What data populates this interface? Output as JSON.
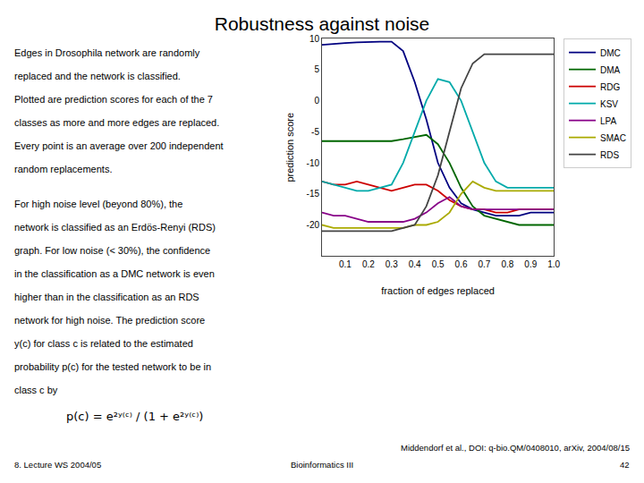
{
  "chart_data": {
    "type": "line",
    "title": "Robustness against noise",
    "xlabel": "fraction of edges replaced",
    "ylabel": "prediction score",
    "x": [
      0,
      0.05,
      0.1,
      0.15,
      0.2,
      0.25,
      0.3,
      0.35,
      0.4,
      0.45,
      0.5,
      0.55,
      0.6,
      0.65,
      0.7,
      0.75,
      0.8,
      0.85,
      0.9,
      0.95,
      1.0
    ],
    "series": [
      {
        "name": "DMC",
        "color": "#000080",
        "values": [
          9,
          9.2,
          9.3,
          9.4,
          9.5,
          9.5,
          9.5,
          8.0,
          3.0,
          -3.0,
          -10.0,
          -14.0,
          -16.5,
          -17.5,
          -18.0,
          -18.5,
          -18.5,
          -18.5,
          -18.0,
          -18.0,
          -18.0
        ]
      },
      {
        "name": "DMA",
        "color": "#006600",
        "values": [
          -6.5,
          -6.5,
          -6.5,
          -6.5,
          -6.5,
          -6.5,
          -6.5,
          -6.2,
          -5.8,
          -5.5,
          -7.0,
          -10.0,
          -14.0,
          -17.0,
          -18.5,
          -19.0,
          -19.5,
          -20.0,
          -20.0,
          -20.0,
          -20.0
        ]
      },
      {
        "name": "RDG",
        "color": "#cc0000",
        "values": [
          -13.0,
          -13.5,
          -13.5,
          -13.0,
          -13.5,
          -14.0,
          -14.5,
          -14.0,
          -13.5,
          -13.5,
          -14.5,
          -16.0,
          -17.0,
          -17.5,
          -17.5,
          -18.0,
          -18.0,
          -17.5,
          -17.5,
          -17.5,
          -17.5
        ]
      },
      {
        "name": "KSV",
        "color": "#00aaaa",
        "values": [
          -13.0,
          -13.5,
          -14.0,
          -14.5,
          -14.5,
          -14.0,
          -13.5,
          -10.0,
          -5.0,
          0.0,
          3.5,
          3.0,
          0.0,
          -5.0,
          -10.0,
          -13.0,
          -14.0,
          -14.0,
          -14.0,
          -14.0,
          -14.0
        ]
      },
      {
        "name": "LPA",
        "color": "#880088",
        "values": [
          -18.0,
          -18.5,
          -18.5,
          -19.0,
          -19.5,
          -19.5,
          -19.5,
          -19.5,
          -19.0,
          -18.0,
          -16.5,
          -15.5,
          -17.0,
          -17.5,
          -17.5,
          -17.5,
          -17.5,
          -17.5,
          -17.5,
          -17.5,
          -17.5
        ]
      },
      {
        "name": "SMAC",
        "color": "#aaaa00",
        "values": [
          -20.0,
          -20.5,
          -20.5,
          -20.5,
          -20.5,
          -20.5,
          -20.5,
          -20.5,
          -20.0,
          -20.0,
          -19.5,
          -18.0,
          -15.0,
          -13.0,
          -14.0,
          -14.5,
          -14.5,
          -14.5,
          -14.5,
          -14.5,
          -14.5
        ]
      },
      {
        "name": "RDS",
        "color": "#444444",
        "values": [
          -21.0,
          -21.0,
          -21.0,
          -21.0,
          -21.0,
          -21.0,
          -21.0,
          -20.5,
          -20.0,
          -17.0,
          -12.0,
          -5.0,
          2.0,
          6.0,
          7.5,
          7.5,
          7.5,
          7.5,
          7.5,
          7.5,
          7.5
        ]
      }
    ],
    "xlim": [
      0,
      1
    ],
    "ylim": [
      -25,
      10
    ],
    "xticks": [
      0.1,
      0.2,
      0.3,
      0.4,
      0.5,
      0.6,
      0.7,
      0.8,
      0.9,
      {
        "value": 1,
        "label": "1.0"
      }
    ],
    "yticks": [
      10,
      5,
      0,
      -5,
      -10,
      -15,
      -20
    ],
    "grid": false,
    "legend": "right",
    "annotations": [
      "Edges in Drosophila network are randomly",
      "replaced and the network is classified.",
      "Plotted are prediction scores for each of the 7",
      "classes as more and more edges are replaced.",
      "Every point is an average over 200 independent",
      "random replacements.",
      "For high noise level (beyond 80%), the",
      "network is classified as an Erdös-Renyi (RDS)",
      "graph. For low noise (< 30%), the confidence",
      "in the classification as a DMC network is even",
      "higher than in the classification as an RDS",
      "network for high noise. The prediction score",
      "y(c) for class c is related to the estimated",
      "probability p(c) for the tested network to be in",
      "class c by",
      "p(c) = e²ʸ⁽ᶜ⁾ / (1 + e²ʸ⁽ᶜ⁾)",
      "8. Lecture WS 2004/05",
      "Bioinformatics III",
      "Middendorf et al., DOI: q-bio.QM/0408010, arXiv, 2004/08/15",
      "42"
    ]
  }
}
